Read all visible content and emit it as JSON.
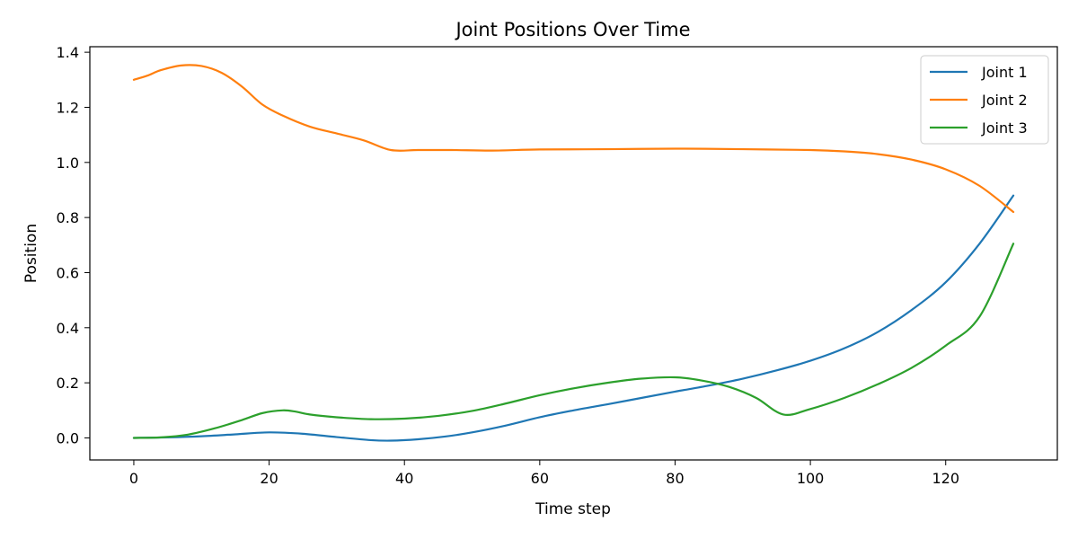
{
  "chart_data": {
    "type": "line",
    "title": "Joint Positions Over Time",
    "xlabel": "Time step",
    "ylabel": "Position",
    "xlim": [
      -6.5,
      136.5
    ],
    "ylim": [
      -0.08,
      1.42
    ],
    "xticks": [
      0,
      20,
      40,
      60,
      80,
      100,
      120
    ],
    "yticks": [
      0.0,
      0.2,
      0.4,
      0.6,
      0.8,
      1.0,
      1.2,
      1.4
    ],
    "grid": false,
    "legend_position": "top-right",
    "series": [
      {
        "name": "Joint 1",
        "color": "#1f77b4",
        "points": [
          [
            0,
            0.0
          ],
          [
            5,
            0.002
          ],
          [
            10,
            0.006
          ],
          [
            15,
            0.013
          ],
          [
            20,
            0.02
          ],
          [
            25,
            0.015
          ],
          [
            30,
            0.003
          ],
          [
            35,
            -0.008
          ],
          [
            38,
            -0.01
          ],
          [
            42,
            -0.005
          ],
          [
            46,
            0.005
          ],
          [
            50,
            0.02
          ],
          [
            55,
            0.045
          ],
          [
            60,
            0.075
          ],
          [
            65,
            0.1
          ],
          [
            70,
            0.122
          ],
          [
            75,
            0.145
          ],
          [
            80,
            0.168
          ],
          [
            85,
            0.19
          ],
          [
            90,
            0.215
          ],
          [
            95,
            0.245
          ],
          [
            100,
            0.28
          ],
          [
            105,
            0.325
          ],
          [
            110,
            0.385
          ],
          [
            115,
            0.465
          ],
          [
            120,
            0.565
          ],
          [
            125,
            0.705
          ],
          [
            130,
            0.88
          ]
        ]
      },
      {
        "name": "Joint 2",
        "color": "#ff7f0e",
        "points": [
          [
            0,
            1.3
          ],
          [
            2,
            1.315
          ],
          [
            4,
            1.335
          ],
          [
            7,
            1.352
          ],
          [
            10,
            1.35
          ],
          [
            13,
            1.325
          ],
          [
            16,
            1.275
          ],
          [
            19,
            1.21
          ],
          [
            22,
            1.17
          ],
          [
            26,
            1.13
          ],
          [
            30,
            1.105
          ],
          [
            34,
            1.08
          ],
          [
            38,
            1.045
          ],
          [
            42,
            1.045
          ],
          [
            47,
            1.045
          ],
          [
            53,
            1.043
          ],
          [
            60,
            1.047
          ],
          [
            70,
            1.048
          ],
          [
            80,
            1.05
          ],
          [
            90,
            1.048
          ],
          [
            100,
            1.045
          ],
          [
            105,
            1.04
          ],
          [
            110,
            1.03
          ],
          [
            115,
            1.01
          ],
          [
            120,
            0.975
          ],
          [
            125,
            0.915
          ],
          [
            130,
            0.82
          ]
        ]
      },
      {
        "name": "Joint 3",
        "color": "#2ca02c",
        "points": [
          [
            0,
            0.0
          ],
          [
            4,
            0.002
          ],
          [
            8,
            0.012
          ],
          [
            12,
            0.035
          ],
          [
            16,
            0.065
          ],
          [
            19,
            0.09
          ],
          [
            22,
            0.1
          ],
          [
            24,
            0.095
          ],
          [
            26,
            0.085
          ],
          [
            30,
            0.075
          ],
          [
            35,
            0.068
          ],
          [
            40,
            0.07
          ],
          [
            45,
            0.08
          ],
          [
            50,
            0.098
          ],
          [
            55,
            0.125
          ],
          [
            60,
            0.155
          ],
          [
            65,
            0.18
          ],
          [
            70,
            0.2
          ],
          [
            75,
            0.215
          ],
          [
            80,
            0.22
          ],
          [
            84,
            0.208
          ],
          [
            88,
            0.185
          ],
          [
            92,
            0.145
          ],
          [
            96,
            0.085
          ],
          [
            100,
            0.105
          ],
          [
            105,
            0.145
          ],
          [
            110,
            0.195
          ],
          [
            115,
            0.255
          ],
          [
            120,
            0.335
          ],
          [
            125,
            0.44
          ],
          [
            130,
            0.705
          ]
        ]
      }
    ]
  }
}
